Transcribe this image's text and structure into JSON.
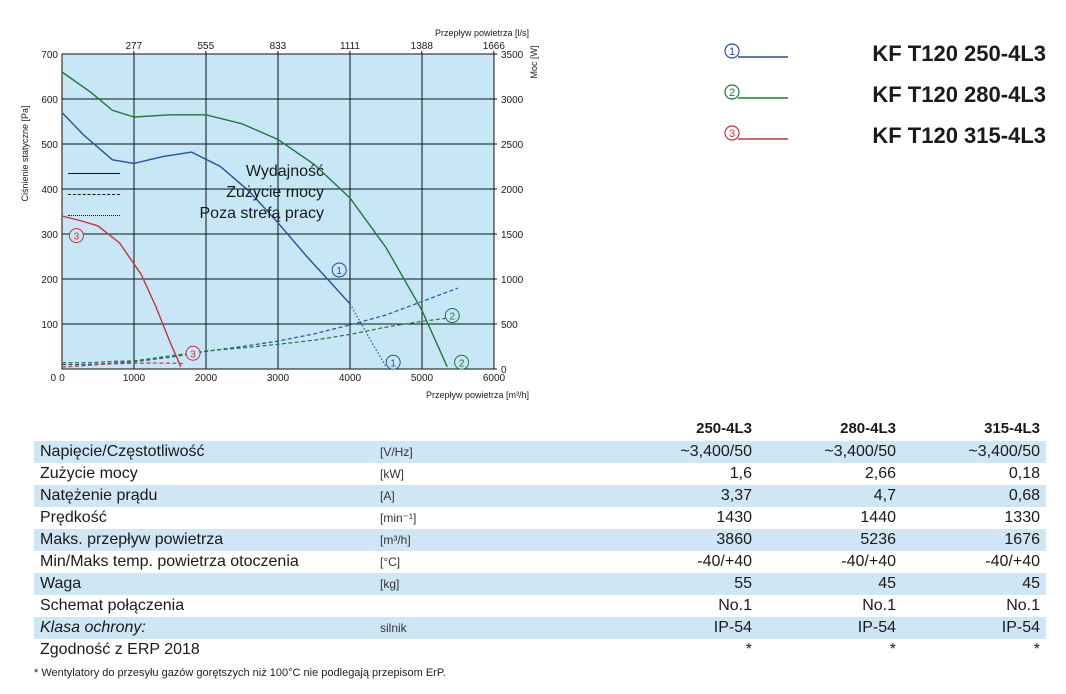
{
  "chart_data": {
    "type": "line",
    "xlabel_bottom": "Przepływ powietrza [m³/h]",
    "xlabel_top": "Przepływ powietrza [l/s]",
    "ylabel_left": "Ciśnienie statyczne [Pa]",
    "ylabel_right": "Moc [W]",
    "x_ticks_bottom": [
      "0",
      "1000",
      "2000",
      "3000",
      "4000",
      "5000",
      "6000"
    ],
    "x_ticks_top": [
      "277",
      "555",
      "833",
      "1111",
      "1388",
      "1666"
    ],
    "y_ticks_left": [
      "0",
      "100",
      "200",
      "300",
      "400",
      "500",
      "600",
      "700"
    ],
    "y_ticks_right": [
      "0",
      "500",
      "1000",
      "1500",
      "2000",
      "2500",
      "3000",
      "3500"
    ],
    "xlim": [
      0,
      6000
    ],
    "ylim_left": [
      0,
      700
    ],
    "ylim_right": [
      0,
      3500
    ],
    "series": [
      {
        "name": "KF T120 250-4L3",
        "marker": "①",
        "color": "#2a4f9e",
        "pressure": [
          [
            0,
            570
          ],
          [
            300,
            520
          ],
          [
            700,
            465
          ],
          [
            1000,
            457
          ],
          [
            1400,
            472
          ],
          [
            1800,
            482
          ],
          [
            2200,
            450
          ],
          [
            2600,
            395
          ],
          [
            3000,
            325
          ],
          [
            3400,
            250
          ],
          [
            3800,
            180
          ],
          [
            4000,
            145
          ]
        ],
        "pressure_out_of_range": [
          [
            4000,
            145
          ],
          [
            4300,
            60
          ],
          [
            4500,
            5
          ]
        ],
        "power": [
          [
            0,
            50
          ],
          [
            400,
            50
          ],
          [
            700,
            65
          ],
          [
            1000,
            80
          ],
          [
            1500,
            130
          ],
          [
            2000,
            195
          ],
          [
            2500,
            250
          ],
          [
            3000,
            310
          ],
          [
            3500,
            390
          ],
          [
            4000,
            490
          ],
          [
            4500,
            600
          ],
          [
            5000,
            750
          ],
          [
            5500,
            900
          ]
        ],
        "curve_marker_x": 3850,
        "end_marker_x": 4600
      },
      {
        "name": "KF T120 280-4L3",
        "marker": "②",
        "color": "#1f7a3a",
        "pressure": [
          [
            0,
            660
          ],
          [
            400,
            615
          ],
          [
            700,
            575
          ],
          [
            1000,
            560
          ],
          [
            1500,
            565
          ],
          [
            2000,
            565
          ],
          [
            2500,
            545
          ],
          [
            3000,
            510
          ],
          [
            3500,
            455
          ],
          [
            4000,
            380
          ],
          [
            4500,
            270
          ],
          [
            5000,
            130
          ],
          [
            5350,
            5
          ]
        ],
        "power": [
          [
            0,
            70
          ],
          [
            400,
            70
          ],
          [
            700,
            85
          ],
          [
            1000,
            90
          ],
          [
            1500,
            145
          ],
          [
            2000,
            200
          ],
          [
            2500,
            235
          ],
          [
            3000,
            275
          ],
          [
            3500,
            320
          ],
          [
            4000,
            385
          ],
          [
            4500,
            465
          ],
          [
            5000,
            530
          ],
          [
            5500,
            580
          ]
        ],
        "curve_marker_x": 5420,
        "end_marker_x": 5550
      },
      {
        "name": "KF T120 315-4L3",
        "marker": "③",
        "color": "#c8333a",
        "pressure": [
          [
            0,
            340
          ],
          [
            250,
            330
          ],
          [
            500,
            318
          ],
          [
            800,
            280
          ],
          [
            1100,
            210
          ],
          [
            1300,
            140
          ],
          [
            1500,
            60
          ],
          [
            1650,
            5
          ]
        ],
        "power": [
          [
            0,
            20
          ],
          [
            300,
            38
          ],
          [
            600,
            55
          ],
          [
            900,
            63
          ],
          [
            1200,
            67
          ],
          [
            1500,
            65
          ],
          [
            1700,
            60
          ]
        ],
        "curve_marker_x": 200,
        "end_marker_x": 1820
      }
    ]
  },
  "legend": {
    "models": [
      {
        "marker": "①",
        "name": "KF T120 250-4L3",
        "color": "#2a4f9e"
      },
      {
        "marker": "②",
        "name": "KF T120 280-4L3",
        "color": "#1f7a3a"
      },
      {
        "marker": "③",
        "name": "KF T120 315-4L3",
        "color": "#c8333a"
      }
    ],
    "line_types": [
      {
        "label": "Wydajność",
        "style": "solid"
      },
      {
        "label": "Zużycie mocy",
        "style": "dashed"
      },
      {
        "label": "Poza strefą pracy",
        "style": "dotted"
      }
    ]
  },
  "table": {
    "headers": [
      "250-4L3",
      "280-4L3",
      "315-4L3"
    ],
    "rows": [
      {
        "param": "Napięcie/Częstotliwość",
        "unit": "[V/Hz]",
        "values": [
          "~3,400/50",
          "~3,400/50",
          "~3,400/50"
        ]
      },
      {
        "param": "Zużycie mocy",
        "unit": "[kW]",
        "values": [
          "1,6",
          "2,66",
          "0,18"
        ]
      },
      {
        "param": "Natężenie prądu",
        "unit": "[A]",
        "values": [
          "3,37",
          "4,7",
          "0,68"
        ]
      },
      {
        "param": "Prędkość",
        "unit": "[min⁻¹]",
        "values": [
          "1430",
          "1440",
          "1330"
        ]
      },
      {
        "param": "Maks. przepływ powietrza",
        "unit": "[m³/h]",
        "values": [
          "3860",
          "5236",
          "1676"
        ]
      },
      {
        "param": "Min/Maks temp. powietrza otoczenia",
        "unit": "[°C]",
        "values": [
          "-40/+40",
          "-40/+40",
          "-40/+40"
        ]
      },
      {
        "param": "Waga",
        "unit": "[kg]",
        "values": [
          "55",
          "45",
          "45"
        ]
      },
      {
        "param": "Schemat połączenia",
        "unit": "",
        "values": [
          "No.1",
          "No.1",
          "No.1"
        ]
      },
      {
        "param": "Klasa ochrony:",
        "unit": "silnik",
        "values": [
          "IP-54",
          "IP-54",
          "IP-54"
        ],
        "italic": true
      },
      {
        "param": "Zgodność z ERP 2018",
        "unit": "",
        "values": [
          "*",
          "*",
          "*"
        ]
      }
    ]
  },
  "footnote": "* Wentylatory do przesyłu gazów gorętszych niż 100°C nie podlegają przepisom ErP."
}
